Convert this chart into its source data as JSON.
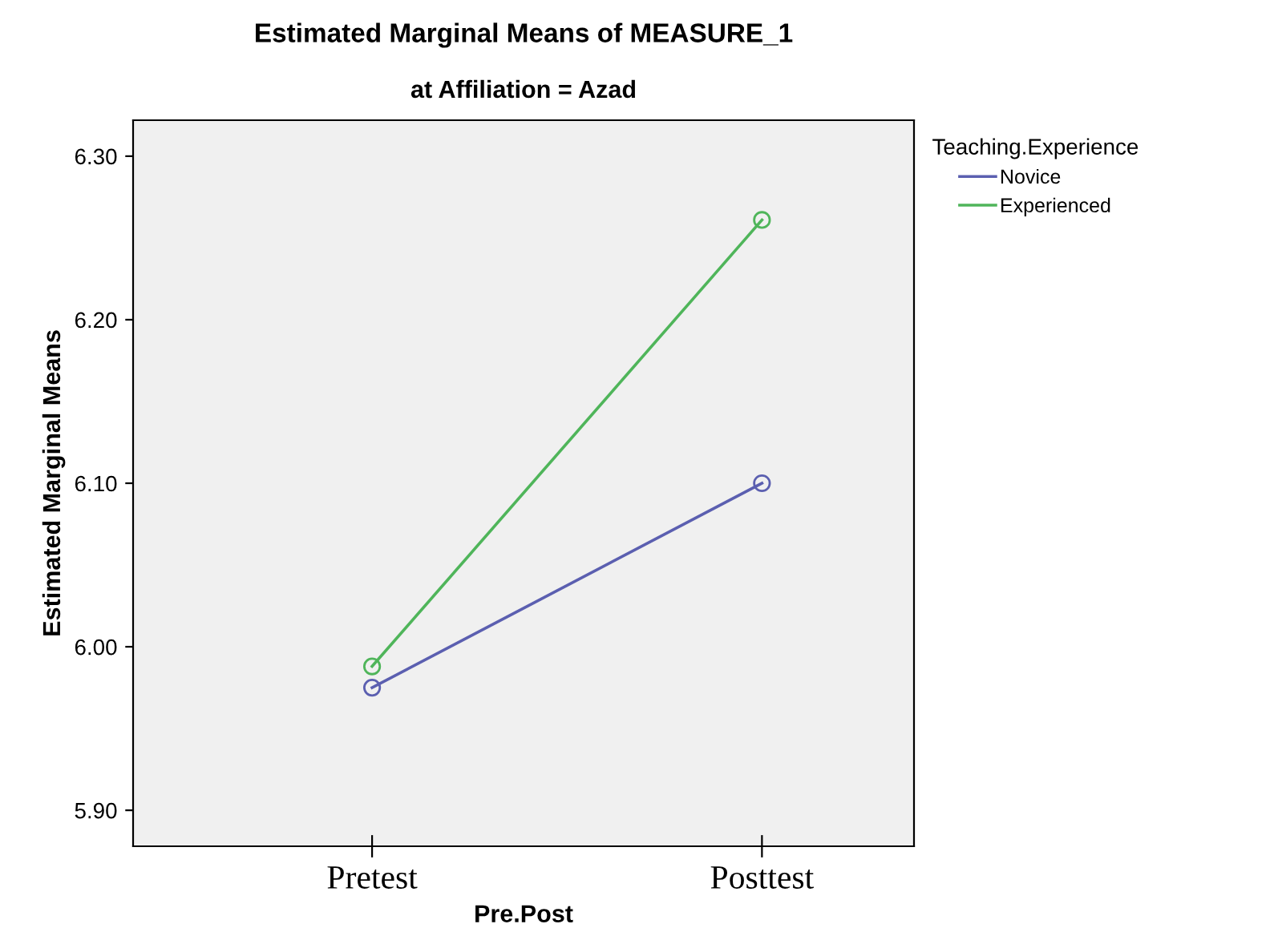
{
  "chart_data": {
    "type": "line",
    "title": "Estimated Marginal Means of MEASURE_1",
    "subtitle": "at Affiliation = Azad",
    "xlabel": "Pre.Post",
    "ylabel": "Estimated Marginal Means",
    "legend_title": "Teaching.Experience",
    "categories": [
      "Pretest",
      "Posttest"
    ],
    "series": [
      {
        "name": "Novice",
        "color": "#5b5fb0",
        "values": [
          5.975,
          6.1
        ]
      },
      {
        "name": "Experienced",
        "color": "#4fb55a",
        "values": [
          5.988,
          6.261
        ]
      }
    ],
    "ylim": [
      5.878,
      6.322
    ],
    "yticks": [
      {
        "value": 5.9,
        "label": "5.90"
      },
      {
        "value": 6.0,
        "label": "6.00"
      },
      {
        "value": 6.1,
        "label": "6.10"
      },
      {
        "value": 6.2,
        "label": "6.20"
      },
      {
        "value": 6.3,
        "label": "6.30"
      }
    ],
    "marker": "circle",
    "line_style": "solid",
    "grid": false,
    "legend": "top right"
  }
}
